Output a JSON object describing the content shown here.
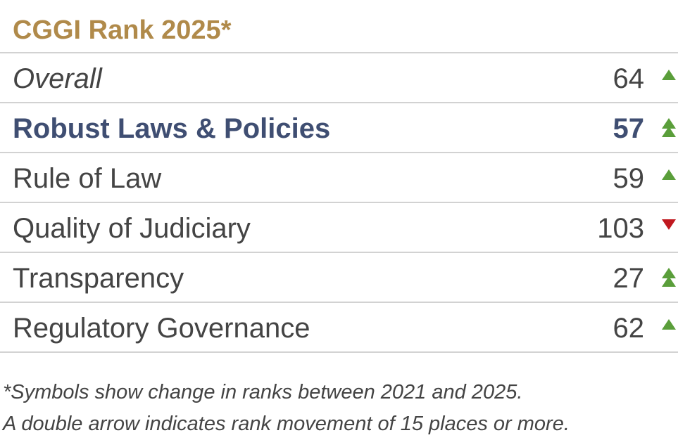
{
  "title": "CGGI Rank 2025*",
  "colors": {
    "title": "#b08a4a",
    "highlight": "#3f4e72",
    "text": "#444444",
    "up": "#5a9e3a",
    "down": "#c0181f",
    "rule": "#d2d2d2"
  },
  "rows": [
    {
      "label": "Overall",
      "rank": "64",
      "change": "up",
      "double": false,
      "style": "italic"
    },
    {
      "label": "Robust Laws & Policies",
      "rank": "57",
      "change": "up",
      "double": true,
      "style": "highlight"
    },
    {
      "label": "Rule of Law",
      "rank": "59",
      "change": "up",
      "double": false,
      "style": "normal"
    },
    {
      "label": "Quality of Judiciary",
      "rank": "103",
      "change": "down",
      "double": false,
      "style": "normal"
    },
    {
      "label": "Transparency",
      "rank": "27",
      "change": "up",
      "double": true,
      "style": "normal"
    },
    {
      "label": "Regulatory Governance",
      "rank": "62",
      "change": "up",
      "double": false,
      "style": "normal"
    }
  ],
  "footnote": {
    "line1": "*Symbols show change in ranks between 2021 and 2025.",
    "line2": "A double arrow indicates rank movement of 15 places or more."
  }
}
